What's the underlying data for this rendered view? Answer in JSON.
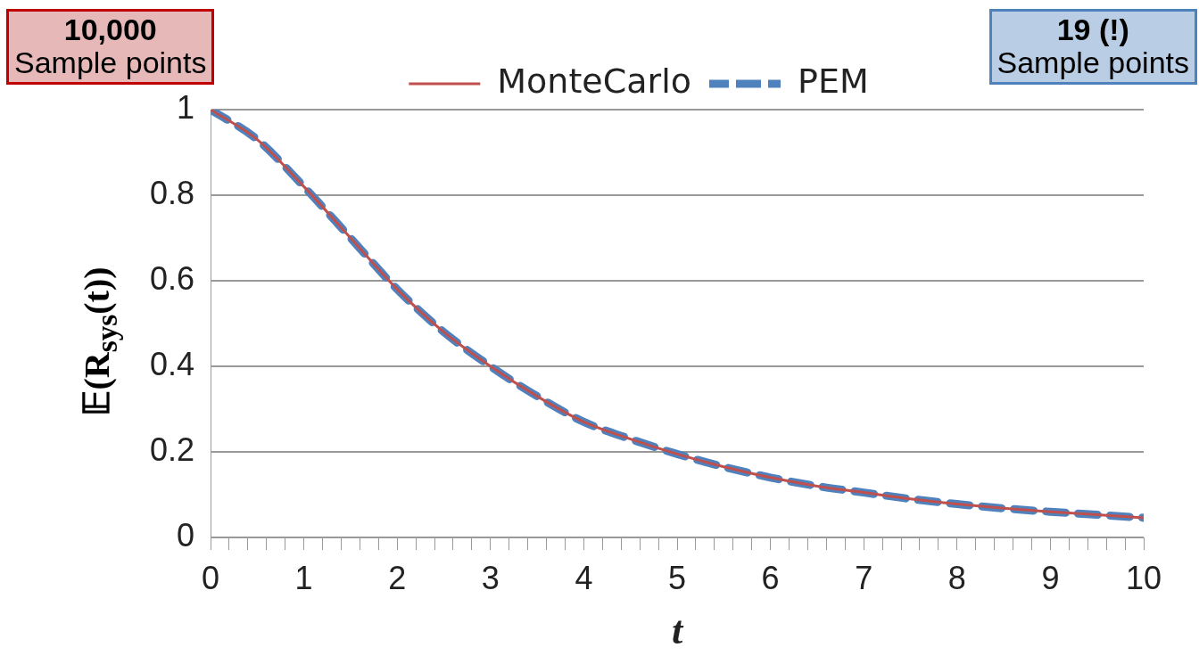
{
  "chart_data": {
    "type": "line",
    "xlabel": "t",
    "ylabel": "𝔼(R$_{sys}$(t))",
    "annotations": [
      "10,000\nSample points",
      "19 (!)\nSample points"
    ],
    "xlim": [
      0,
      10
    ],
    "xticks": [
      0,
      {
        "value": 0.2,
        "label": null
      },
      {
        "value": 0.4,
        "label": null
      },
      {
        "value": 0.6,
        "label": null
      },
      {
        "value": 0.8,
        "label": null
      },
      1,
      {
        "value": 1.2,
        "label": null
      },
      {
        "value": 1.4,
        "label": null
      },
      {
        "value": 1.6,
        "label": null
      },
      {
        "value": 1.8,
        "label": null
      },
      2,
      {
        "value": 2.2,
        "label": null
      },
      {
        "value": 2.4,
        "label": null
      },
      {
        "value": 2.6,
        "label": null
      },
      {
        "value": 2.8,
        "label": null
      },
      3,
      {
        "value": 3.2,
        "label": null
      },
      {
        "value": 3.4,
        "label": null
      },
      {
        "value": 3.6,
        "label": null
      },
      {
        "value": 3.8,
        "label": null
      },
      4,
      {
        "value": 4.2,
        "label": null
      },
      {
        "value": 4.4,
        "label": null
      },
      {
        "value": 4.6,
        "label": null
      },
      {
        "value": 4.8,
        "label": null
      },
      5,
      {
        "value": 5.2,
        "label": null
      },
      {
        "value": 5.4,
        "label": null
      },
      {
        "value": 5.6,
        "label": null
      },
      {
        "value": 5.8,
        "label": null
      },
      6,
      {
        "value": 6.2,
        "label": null
      },
      {
        "value": 6.4,
        "label": null
      },
      {
        "value": 6.6,
        "label": null
      },
      {
        "value": 6.8,
        "label": null
      },
      7,
      {
        "value": 7.2,
        "label": null
      },
      {
        "value": 7.4,
        "label": null
      },
      {
        "value": 7.6,
        "label": null
      },
      {
        "value": 7.8,
        "label": null
      },
      8,
      {
        "value": 8.2,
        "label": null
      },
      {
        "value": 8.4,
        "label": null
      },
      {
        "value": 8.6,
        "label": null
      },
      {
        "value": 8.8,
        "label": null
      },
      9,
      {
        "value": 9.2,
        "label": null
      },
      {
        "value": 9.4,
        "label": null
      },
      {
        "value": 9.6,
        "label": null
      },
      {
        "value": 9.8,
        "label": null
      },
      10
    ],
    "ylim": [
      0,
      1
    ],
    "yticks": [
      0,
      0.2,
      0.4,
      0.6,
      0.8,
      1
    ],
    "grid": "y",
    "legend": "top",
    "marker": "none",
    "series": [
      {
        "name": "MonteCarlo",
        "color": "#c0504d",
        "line_style": "solid",
        "x": [
          0,
          0.5,
          1,
          1.5,
          2,
          2.5,
          3,
          3.5,
          4,
          4.5,
          5,
          5.5,
          6,
          6.5,
          7,
          7.5,
          8,
          8.5,
          9,
          9.5,
          10
        ],
        "values": [
          1,
          0.93,
          0.82,
          0.7,
          0.58,
          0.48,
          0.4,
          0.33,
          0.27,
          0.23,
          0.195,
          0.165,
          0.14,
          0.12,
          0.105,
          0.09,
          0.078,
          0.068,
          0.06,
          0.053,
          0.046
        ]
      },
      {
        "name": "PEM",
        "color": "#4f81bd",
        "line_style": "dashed",
        "x": [
          0,
          0.5,
          1,
          1.5,
          2,
          2.5,
          3,
          3.5,
          4,
          4.5,
          5,
          5.5,
          6,
          6.5,
          7,
          7.5,
          8,
          8.5,
          9,
          9.5,
          10
        ],
        "values": [
          1,
          0.93,
          0.82,
          0.7,
          0.58,
          0.48,
          0.4,
          0.33,
          0.27,
          0.23,
          0.195,
          0.165,
          0.14,
          0.12,
          0.105,
          0.09,
          0.078,
          0.068,
          0.06,
          0.053,
          0.046
        ]
      }
    ]
  }
}
